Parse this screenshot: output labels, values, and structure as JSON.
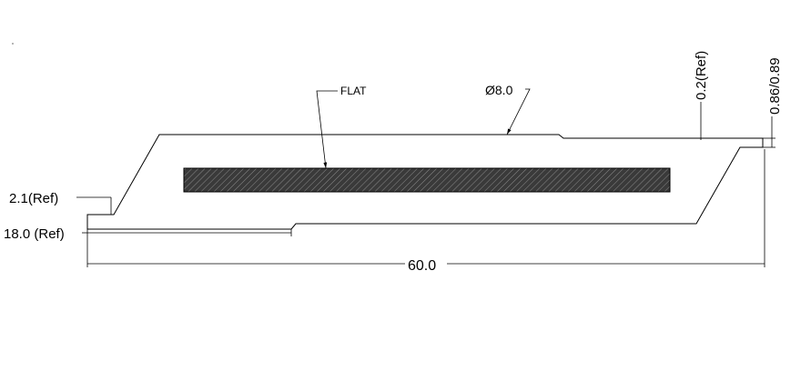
{
  "drawing": {
    "labels": {
      "flat": "FLAT",
      "diameter": "Ø8.0",
      "ref_02": "0.2(Ref)",
      "dim_086_089": "0.86/0.89",
      "ref_21": "2.1(Ref)",
      "ref_180": "18.0 (Ref)",
      "length_600": "60.0"
    },
    "colors": {
      "line": "#000000",
      "hatch_fill": "#3a3a3a",
      "background": "#ffffff"
    }
  }
}
